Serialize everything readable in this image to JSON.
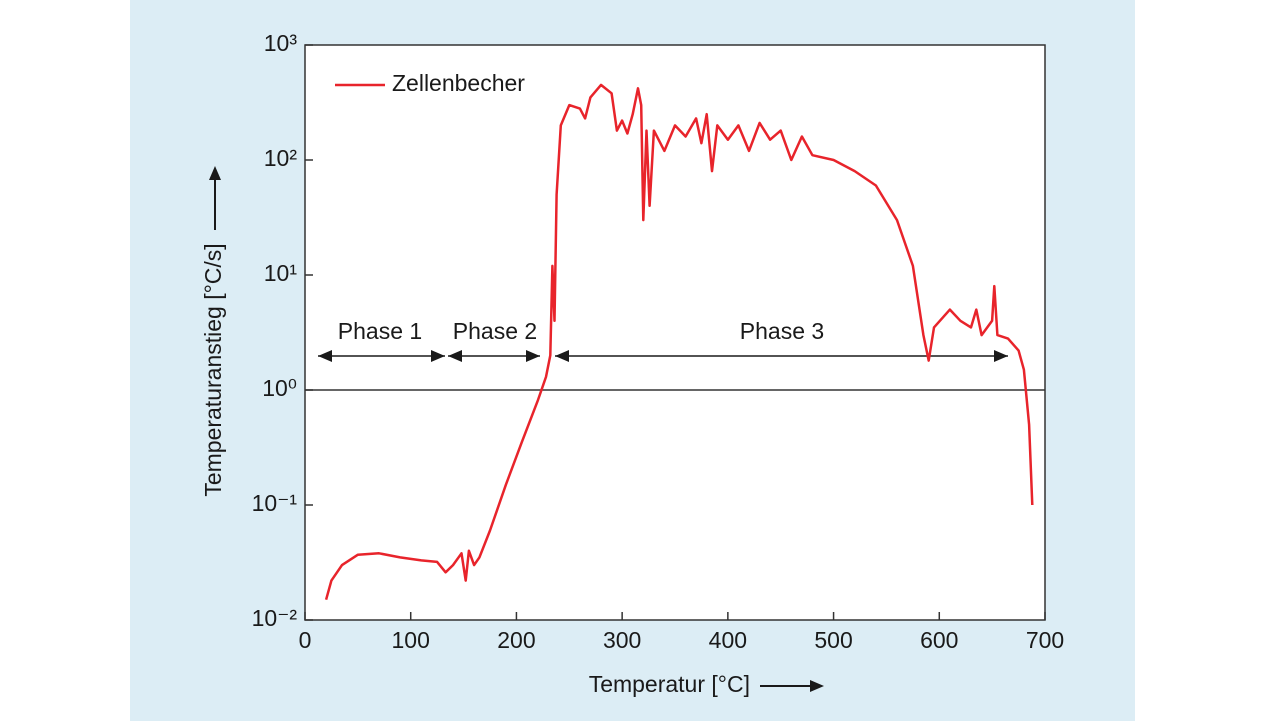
{
  "chart_data": {
    "type": "line",
    "xlabel": "Temperatur [°C]",
    "ylabel": "Temperaturanstieg [°C/s]",
    "log_y": true,
    "xlim": [
      0,
      700
    ],
    "xticks": [
      0,
      100,
      200,
      300,
      400,
      500,
      600,
      700
    ],
    "ylim": [
      0.01,
      1000
    ],
    "yticks": [
      {
        "value": 0.01,
        "label": "10⁻²"
      },
      {
        "value": 0.1,
        "label": "10⁻¹"
      },
      {
        "value": 1,
        "label": "10⁰"
      },
      {
        "value": 10,
        "label": "10¹"
      },
      {
        "value": 100,
        "label": "10²"
      },
      {
        "value": 1000,
        "label": "10³"
      }
    ],
    "reference_line": 1,
    "legend": "upper left",
    "annotations": [
      "Phase 1",
      "Phase 2",
      "Phase 3"
    ],
    "x": [
      20,
      25,
      35,
      50,
      70,
      90,
      110,
      125,
      133,
      140,
      148,
      152,
      155,
      160,
      165,
      175,
      190,
      205,
      220,
      228,
      232,
      234,
      236,
      238,
      242,
      250,
      260,
      265,
      270,
      280,
      290,
      295,
      300,
      305,
      310,
      315,
      318,
      320,
      323,
      326,
      330,
      340,
      350,
      360,
      370,
      375,
      380,
      385,
      390,
      400,
      410,
      420,
      430,
      440,
      450,
      460,
      470,
      480,
      500,
      520,
      540,
      560,
      575,
      585,
      590,
      595,
      610,
      620,
      630,
      635,
      640,
      650,
      652,
      655,
      665,
      675,
      680,
      685,
      688
    ],
    "series": [
      {
        "name": "Zellenbecher",
        "color": "#e8242b",
        "values": [
          0.015,
          0.022,
          0.03,
          0.037,
          0.038,
          0.035,
          0.033,
          0.032,
          0.026,
          0.03,
          0.038,
          0.022,
          0.04,
          0.03,
          0.035,
          0.06,
          0.15,
          0.35,
          0.8,
          1.3,
          2,
          12,
          4,
          50,
          200,
          300,
          280,
          230,
          350,
          450,
          380,
          180,
          220,
          170,
          250,
          420,
          300,
          30,
          180,
          40,
          180,
          120,
          200,
          160,
          230,
          140,
          250,
          80,
          200,
          150,
          200,
          120,
          210,
          150,
          180,
          100,
          160,
          110,
          100,
          80,
          60,
          30,
          12,
          3,
          1.8,
          3.5,
          5,
          4,
          3.5,
          5,
          3,
          4,
          8,
          3,
          2.8,
          2.2,
          1.5,
          0.5,
          0.1
        ]
      }
    ]
  }
}
